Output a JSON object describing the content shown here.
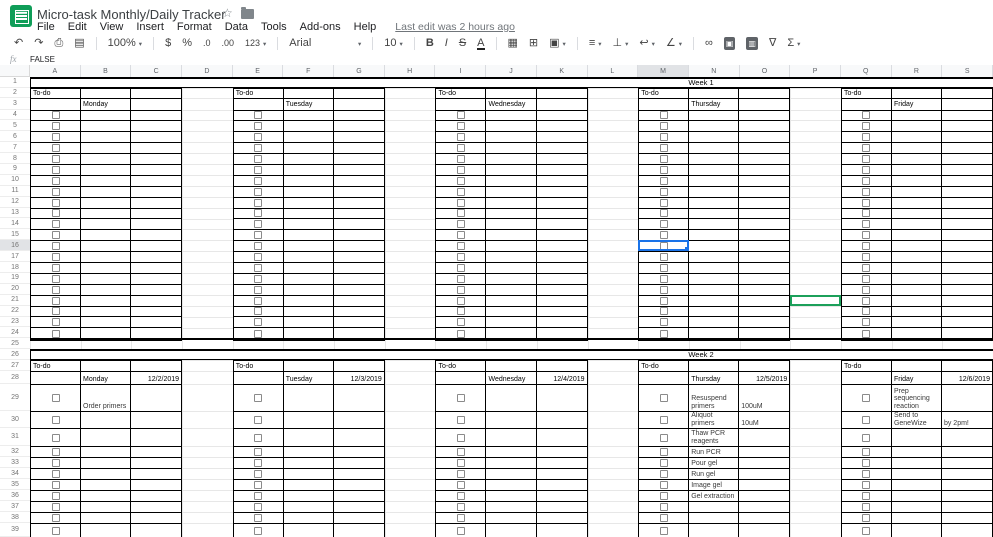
{
  "titlebar": {
    "title": "Micro-task Monthly/Daily Tracker",
    "star_icon": "☆"
  },
  "menubar": {
    "items": [
      "File",
      "Edit",
      "View",
      "Insert",
      "Format",
      "Data",
      "Tools",
      "Add-ons",
      "Help"
    ],
    "last_edit": "Last edit was 2 hours ago"
  },
  "toolbar": {
    "items": [
      {
        "name": "undo-icon",
        "glyph": "↶"
      },
      {
        "name": "redo-icon",
        "glyph": "↷"
      },
      {
        "name": "print-icon",
        "glyph": "⎙"
      },
      {
        "name": "paint-format-icon",
        "glyph": "▤"
      },
      {
        "name": "separator"
      },
      {
        "name": "zoom-select",
        "text": "100%",
        "caret": true
      },
      {
        "name": "separator"
      },
      {
        "name": "currency-format-icon",
        "glyph": "$"
      },
      {
        "name": "percent-format-icon",
        "glyph": "%"
      },
      {
        "name": "decrease-decimal-icon",
        "glyph": ".0",
        "small": true
      },
      {
        "name": "increase-decimal-icon",
        "glyph": ".00",
        "small": true
      },
      {
        "name": "number-format-select",
        "text": "123",
        "caret": true,
        "small": true
      },
      {
        "name": "separator"
      },
      {
        "name": "font-select",
        "text": "Arial",
        "caret": true,
        "wide": true
      },
      {
        "name": "separator"
      },
      {
        "name": "font-size-select",
        "text": "10",
        "caret": true
      },
      {
        "name": "separator"
      },
      {
        "name": "bold-icon",
        "glyph": "B",
        "cls": "bold"
      },
      {
        "name": "italic-icon",
        "glyph": "I",
        "cls": "italic"
      },
      {
        "name": "strikethrough-icon",
        "glyph": "S",
        "cls": "strike"
      },
      {
        "name": "text-color-icon",
        "glyph": "A",
        "cls": "underbar"
      },
      {
        "name": "separator"
      },
      {
        "name": "fill-color-icon",
        "glyph": "▦"
      },
      {
        "name": "borders-icon",
        "glyph": "⊞"
      },
      {
        "name": "merge-cells-icon",
        "glyph": "▣",
        "caret": true
      },
      {
        "name": "separator"
      },
      {
        "name": "horizontal-align-icon",
        "glyph": "≡",
        "caret": true
      },
      {
        "name": "vertical-align-icon",
        "glyph": "⊥",
        "caret": true
      },
      {
        "name": "text-wrap-icon",
        "glyph": "↩",
        "caret": true
      },
      {
        "name": "text-rotation-icon",
        "glyph": "∠",
        "caret": true
      },
      {
        "name": "separator"
      },
      {
        "name": "insert-link-icon",
        "glyph": "∞"
      },
      {
        "name": "insert-comment-icon",
        "glyph": "▣",
        "cls": "boxed"
      },
      {
        "name": "insert-chart-icon",
        "glyph": "▥",
        "cls": "boxed"
      },
      {
        "name": "filter-icon",
        "glyph": "∇"
      },
      {
        "name": "functions-icon",
        "glyph": "Σ",
        "caret": true
      }
    ]
  },
  "formula_bar": {
    "fx_label": "fx",
    "value": "FALSE"
  },
  "grid": {
    "column_headers": [
      "A",
      "B",
      "C",
      "D",
      "E",
      "F",
      "G",
      "H",
      "I",
      "J",
      "K",
      "L",
      "M",
      "N",
      "O",
      "P",
      "Q",
      "R",
      "S"
    ],
    "row_numbers": [
      1,
      2,
      3,
      4,
      5,
      6,
      7,
      8,
      9,
      10,
      11,
      12,
      13,
      14,
      15,
      16,
      17,
      18,
      19,
      20,
      21,
      22,
      23,
      24,
      25,
      26,
      27,
      28,
      29,
      30,
      31,
      32,
      33,
      34,
      35,
      36,
      37,
      38,
      39
    ],
    "selection": {
      "column": "M",
      "row": 16
    },
    "collaborator_selection": {
      "column": "P",
      "row": 21
    },
    "weeks": [
      {
        "label": "Week 1",
        "todo_label": "To-do",
        "days": [
          {
            "name": "Monday",
            "date": "",
            "tasks": []
          },
          {
            "name": "Tuesday",
            "date": "",
            "tasks": []
          },
          {
            "name": "Wednesday",
            "date": "",
            "tasks": []
          },
          {
            "name": "Thursday",
            "date": "",
            "tasks": []
          },
          {
            "name": "Friday",
            "date": "",
            "tasks": []
          }
        ]
      },
      {
        "label": "Week 2",
        "todo_label": "To-do",
        "days": [
          {
            "name": "Monday",
            "date": "12/2/2019",
            "tasks": [
              {
                "text": "Order primers",
                "note": ""
              }
            ]
          },
          {
            "name": "Tuesday",
            "date": "12/3/2019",
            "tasks": []
          },
          {
            "name": "Wednesday",
            "date": "12/4/2019",
            "tasks": []
          },
          {
            "name": "Thursday",
            "date": "12/5/2019",
            "tasks": [
              {
                "text": "Resuspend primers",
                "note": "100uM"
              },
              {
                "text": "Aliquot primers",
                "note": "10uM"
              },
              {
                "text": "Thaw PCR reagents",
                "note": ""
              },
              {
                "text": "Run PCR",
                "note": ""
              },
              {
                "text": "Pour gel",
                "note": ""
              },
              {
                "text": "Run gel",
                "note": ""
              },
              {
                "text": "Image gel",
                "note": ""
              },
              {
                "text": "Gel extraction",
                "note": ""
              }
            ]
          },
          {
            "name": "Friday",
            "date": "12/6/2019",
            "tasks": [
              {
                "text": "Prep sequencing reaction",
                "note": ""
              },
              {
                "text": "Send to GeneWize",
                "note": "by 2pm!"
              }
            ]
          }
        ]
      }
    ]
  }
}
